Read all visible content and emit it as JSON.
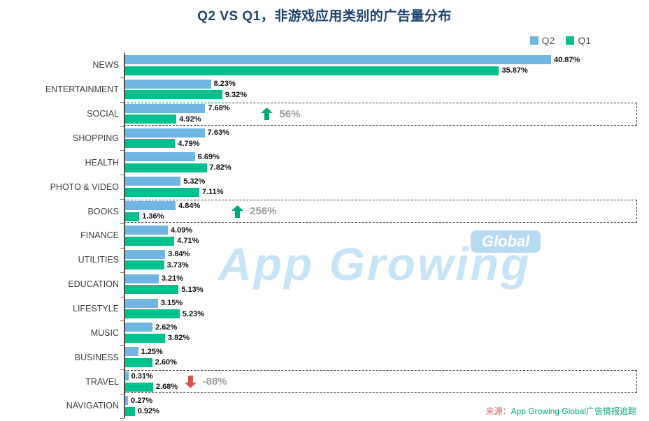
{
  "title": "Q2 VS Q1，非游戏应用类别的广告量分布",
  "legend": [
    {
      "label": "Q2",
      "color": "#6fb6e2"
    },
    {
      "label": "Q1",
      "color": "#00c08d"
    }
  ],
  "colors": {
    "q2_bar": "#6fb6e2",
    "q1_bar": "#00c08d",
    "arrow_up": "#00a878",
    "arrow_down": "#d9534f",
    "annotation_text": "#9c9c9c",
    "title": "#1d4370"
  },
  "watermark": {
    "text": "App Growing",
    "badge": "Global"
  },
  "source": {
    "prefix": "来源：",
    "text": "App Growing Global广告情报追踪",
    "prefix_color": "#d0605a",
    "text_color": "#00a583"
  },
  "chart_data": {
    "type": "bar",
    "orientation": "horizontal",
    "title": "Q2 VS Q1，非游戏应用类别的广告量分布",
    "xlabel": "",
    "ylabel": "",
    "xlim": [
      0,
      49
    ],
    "grid": false,
    "legend_position": "top-right",
    "categories": [
      "NEWS",
      "ENTERTAINMENT",
      "SOCIAL",
      "SHOPPING",
      "HEALTH",
      "PHOTO & VIDEO",
      "BOOKS",
      "FINANCE",
      "UTILITIES",
      "EDUCATION",
      "LIFESTYLE",
      "MUSIC",
      "BUSINESS",
      "TRAVEL",
      "NAVIGATION"
    ],
    "series": [
      {
        "name": "Q2",
        "color": "#6fb6e2",
        "values": [
          40.87,
          8.23,
          7.68,
          7.63,
          6.69,
          5.32,
          4.84,
          4.09,
          3.84,
          3.21,
          3.15,
          2.62,
          1.25,
          0.31,
          0.27
        ],
        "labels": [
          "40.87%",
          "8.23%",
          "7.68%",
          "7.63%",
          "6.69%",
          "5.32%",
          "4.84%",
          "4.09%",
          "3.84%",
          "3.21%",
          "3.15%",
          "2.62%",
          "1.25%",
          "0.31%",
          "0.27%"
        ]
      },
      {
        "name": "Q1",
        "color": "#00c08d",
        "values": [
          35.87,
          9.32,
          4.92,
          4.79,
          7.82,
          7.11,
          1.36,
          4.71,
          3.73,
          5.13,
          5.23,
          3.82,
          2.6,
          2.68,
          0.92
        ],
        "labels": [
          "35.87%",
          "9.32%",
          "4.92%",
          "4.79%",
          "7.82%",
          "7.11%",
          "1.36%",
          "4.71%",
          "3.73%",
          "5.13%",
          "5.23%",
          "3.82%",
          "2.60%",
          "2.68%",
          "0.92%"
        ]
      }
    ],
    "annotations": [
      {
        "category": "SOCIAL",
        "text": "56%",
        "direction": "up"
      },
      {
        "category": "BOOKS",
        "text": "256%",
        "direction": "up"
      },
      {
        "category": "TRAVEL",
        "text": "-88%",
        "direction": "down"
      }
    ],
    "highlighted": [
      "SOCIAL",
      "BOOKS",
      "TRAVEL"
    ]
  }
}
